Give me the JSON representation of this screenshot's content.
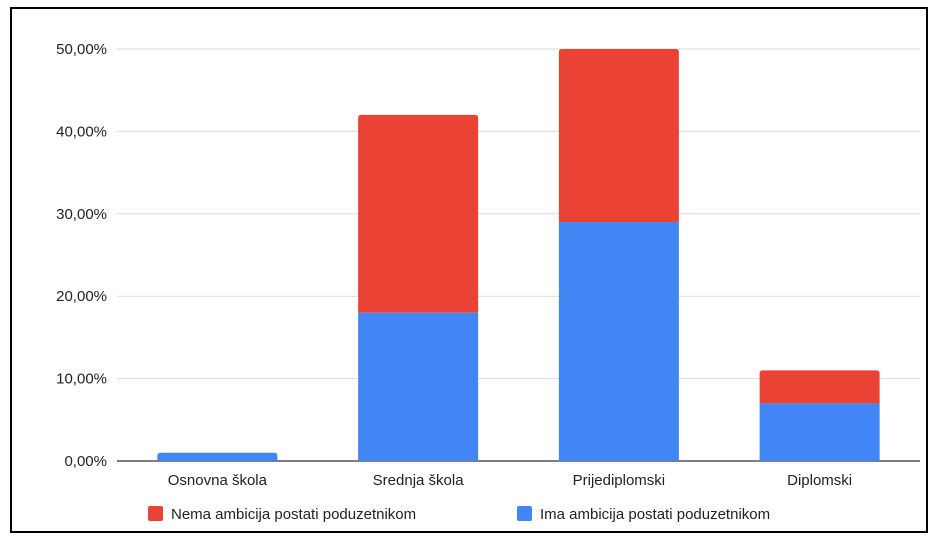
{
  "chart_data": {
    "type": "bar",
    "stacked": true,
    "categories": [
      "Osnovna škola",
      "Srednja škola",
      "Prijediplomski",
      "Diplomski"
    ],
    "series": [
      {
        "name": "Ima ambicija postati poduzetnikom",
        "color": "#4285F4",
        "values": [
          1,
          18,
          29,
          7
        ]
      },
      {
        "name": "Nema ambicija postati poduzetnikom",
        "color": "#EA4335",
        "values": [
          0,
          24,
          21,
          4
        ]
      }
    ],
    "legend_order": [
      1,
      0
    ],
    "y_ticks": [
      "0,00%",
      "10,00%",
      "20,00%",
      "30,00%",
      "40,00%",
      "50,00%"
    ],
    "ylim": [
      0,
      50
    ],
    "grid": true,
    "legend_position": "bottom",
    "title": "",
    "xlabel": "",
    "ylabel": ""
  }
}
